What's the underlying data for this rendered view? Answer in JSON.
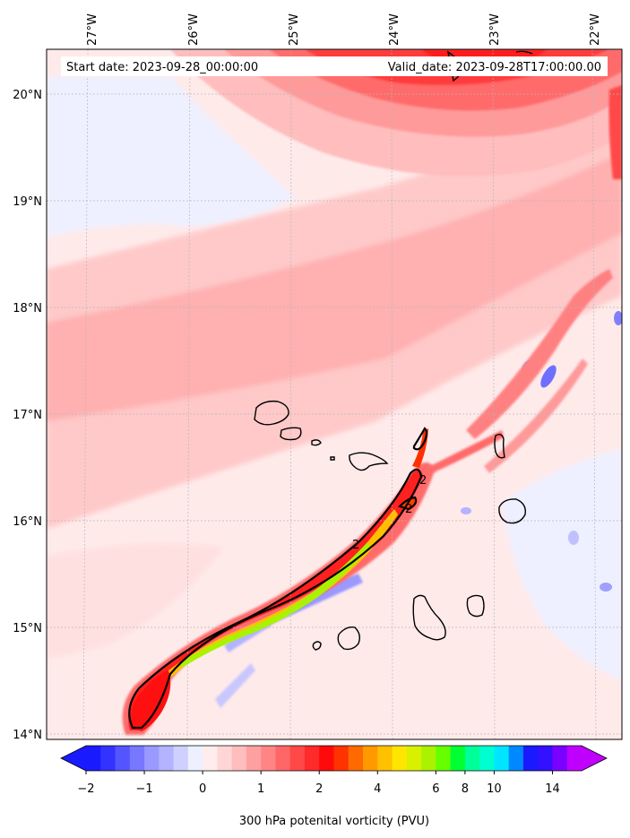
{
  "map": {
    "start_date_text": "Start date: 2023-09-28_00:00:00",
    "valid_date_text": "Valid_date: 2023-09-28T17:00:00.00",
    "lon_labels": [
      "27°W",
      "26°W",
      "25°W",
      "24°W",
      "23°W",
      "22°W"
    ],
    "lat_labels": [
      "20°N",
      "19°N",
      "18°N",
      "17°N",
      "16°N",
      "15°N",
      "14°N"
    ],
    "contour_label": "2",
    "field": "300 hPa potential vorticity",
    "contour_level_pvu": 2
  },
  "colorbar": {
    "title": "300 hPa potenital vorticity (PVU)",
    "tick_labels": [
      "−2",
      "−1",
      "0",
      "1",
      "2",
      "4",
      "6",
      "8",
      "10",
      "14"
    ],
    "colors": [
      "#1a1aff",
      "#3333ff",
      "#5555ff",
      "#7777ff",
      "#9999ff",
      "#b3b3ff",
      "#d0d0ff",
      "#eef0ff",
      "#ffecec",
      "#ffd6d6",
      "#ffbdbd",
      "#ffa0a0",
      "#ff8585",
      "#ff6666",
      "#ff4848",
      "#ff2a2a",
      "#ff0a0a",
      "#ff3300",
      "#ff6a00",
      "#ff9900",
      "#ffc000",
      "#ffe600",
      "#d9f000",
      "#aaf200",
      "#66ff00",
      "#00ff33",
      "#00ff99",
      "#00ffd0",
      "#00e5ff",
      "#0088ff",
      "#1a1aff",
      "#3311ff",
      "#7a00ff",
      "#c000ff"
    ],
    "extend": "both"
  }
}
